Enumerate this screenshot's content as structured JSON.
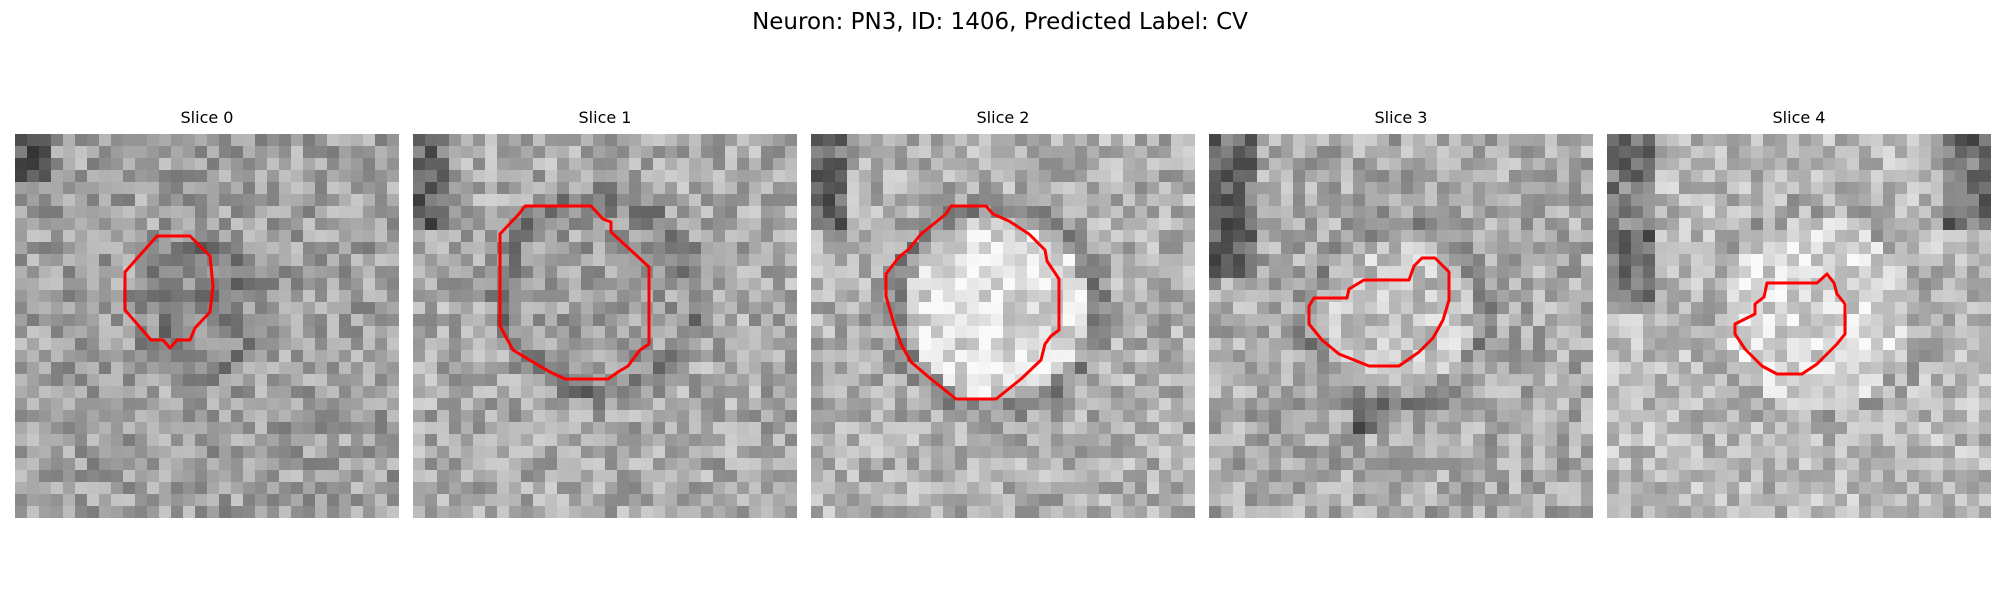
{
  "figure": {
    "title": "Neuron: PN3, ID: 1406, Predicted Label: CV",
    "contour_color": "#ff0000"
  },
  "slices": [
    {
      "title": "Slice 0"
    },
    {
      "title": "Slice 1"
    },
    {
      "title": "Slice 2"
    },
    {
      "title": "Slice 3"
    },
    {
      "title": "Slice 4"
    }
  ]
}
